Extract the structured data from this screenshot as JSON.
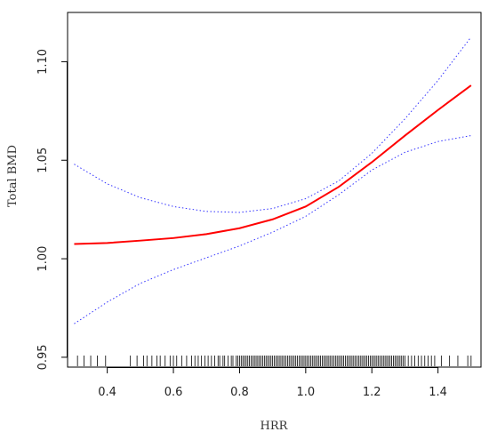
{
  "chart_data": {
    "type": "line",
    "title": "",
    "xlabel": "HRR",
    "ylabel": "Total BMD",
    "xlim": [
      0.28,
      1.53
    ],
    "ylim": [
      0.945,
      1.125
    ],
    "x_ticks": [
      0.4,
      0.6,
      0.8,
      1.0,
      1.2,
      1.4
    ],
    "x_tick_labels": [
      "0.4",
      "0.6",
      "0.8",
      "1.0",
      "1.2",
      "1.4"
    ],
    "y_ticks": [
      0.95,
      1.0,
      1.05,
      1.1
    ],
    "y_tick_labels": [
      "0.95",
      "1.00",
      "1.05",
      "1.10"
    ],
    "grid": false,
    "series": [
      {
        "role": "fit",
        "color": "#ff0000",
        "style": "solid",
        "x": [
          0.3,
          0.4,
          0.5,
          0.6,
          0.7,
          0.8,
          0.9,
          1.0,
          1.1,
          1.2,
          1.3,
          1.4,
          1.5
        ],
        "values": [
          1.0075,
          1.008,
          1.0092,
          1.0105,
          1.0125,
          1.0155,
          1.02,
          1.0265,
          1.0365,
          1.049,
          1.0625,
          1.0755,
          1.088
        ]
      },
      {
        "role": "upper_ci",
        "color": "#3333ff",
        "style": "dotted",
        "x": [
          0.3,
          0.4,
          0.5,
          0.6,
          0.7,
          0.8,
          0.9,
          1.0,
          1.1,
          1.2,
          1.3,
          1.4,
          1.5
        ],
        "values": [
          1.048,
          1.038,
          1.031,
          1.0265,
          1.024,
          1.0235,
          1.0255,
          1.0305,
          1.0395,
          1.0535,
          1.071,
          1.0905,
          1.1125
        ]
      },
      {
        "role": "lower_ci",
        "color": "#3333ff",
        "style": "dotted",
        "x": [
          0.3,
          0.4,
          0.5,
          0.6,
          0.7,
          0.8,
          0.9,
          1.0,
          1.1,
          1.2,
          1.3,
          1.4,
          1.5
        ],
        "values": [
          0.967,
          0.978,
          0.9875,
          0.9945,
          1.0005,
          1.0065,
          1.0135,
          1.0215,
          1.0325,
          1.045,
          1.054,
          1.0595,
          1.0625
        ]
      }
    ],
    "rug": {
      "color": "#000000",
      "x": [
        0.31,
        0.33,
        0.35,
        0.37,
        0.395,
        0.47,
        0.49,
        0.51,
        0.52,
        0.535,
        0.55,
        0.56,
        0.575,
        0.59,
        0.6,
        0.61,
        0.625,
        0.64,
        0.655,
        0.665,
        0.675,
        0.685,
        0.695,
        0.705,
        0.715,
        0.725,
        0.735,
        0.74,
        0.75,
        0.755,
        0.765,
        0.775,
        0.78,
        0.79,
        0.795,
        0.8,
        0.805,
        0.81,
        0.815,
        0.82,
        0.825,
        0.83,
        0.835,
        0.84,
        0.845,
        0.85,
        0.855,
        0.86,
        0.865,
        0.87,
        0.875,
        0.88,
        0.885,
        0.89,
        0.895,
        0.9,
        0.905,
        0.91,
        0.915,
        0.92,
        0.925,
        0.93,
        0.935,
        0.94,
        0.945,
        0.95,
        0.955,
        0.96,
        0.965,
        0.97,
        0.975,
        0.98,
        0.985,
        0.99,
        0.995,
        1.0,
        1.005,
        1.01,
        1.015,
        1.02,
        1.025,
        1.03,
        1.035,
        1.04,
        1.045,
        1.05,
        1.055,
        1.06,
        1.065,
        1.07,
        1.075,
        1.08,
        1.085,
        1.09,
        1.095,
        1.1,
        1.105,
        1.11,
        1.115,
        1.12,
        1.125,
        1.13,
        1.135,
        1.14,
        1.145,
        1.15,
        1.155,
        1.16,
        1.165,
        1.17,
        1.175,
        1.18,
        1.185,
        1.19,
        1.195,
        1.2,
        1.205,
        1.21,
        1.215,
        1.22,
        1.225,
        1.23,
        1.235,
        1.24,
        1.245,
        1.25,
        1.255,
        1.26,
        1.265,
        1.27,
        1.275,
        1.28,
        1.285,
        1.29,
        1.295,
        1.3,
        1.31,
        1.32,
        1.33,
        1.34,
        1.35,
        1.36,
        1.37,
        1.38,
        1.39,
        1.41,
        1.435,
        1.46,
        1.49,
        1.5
      ]
    }
  }
}
